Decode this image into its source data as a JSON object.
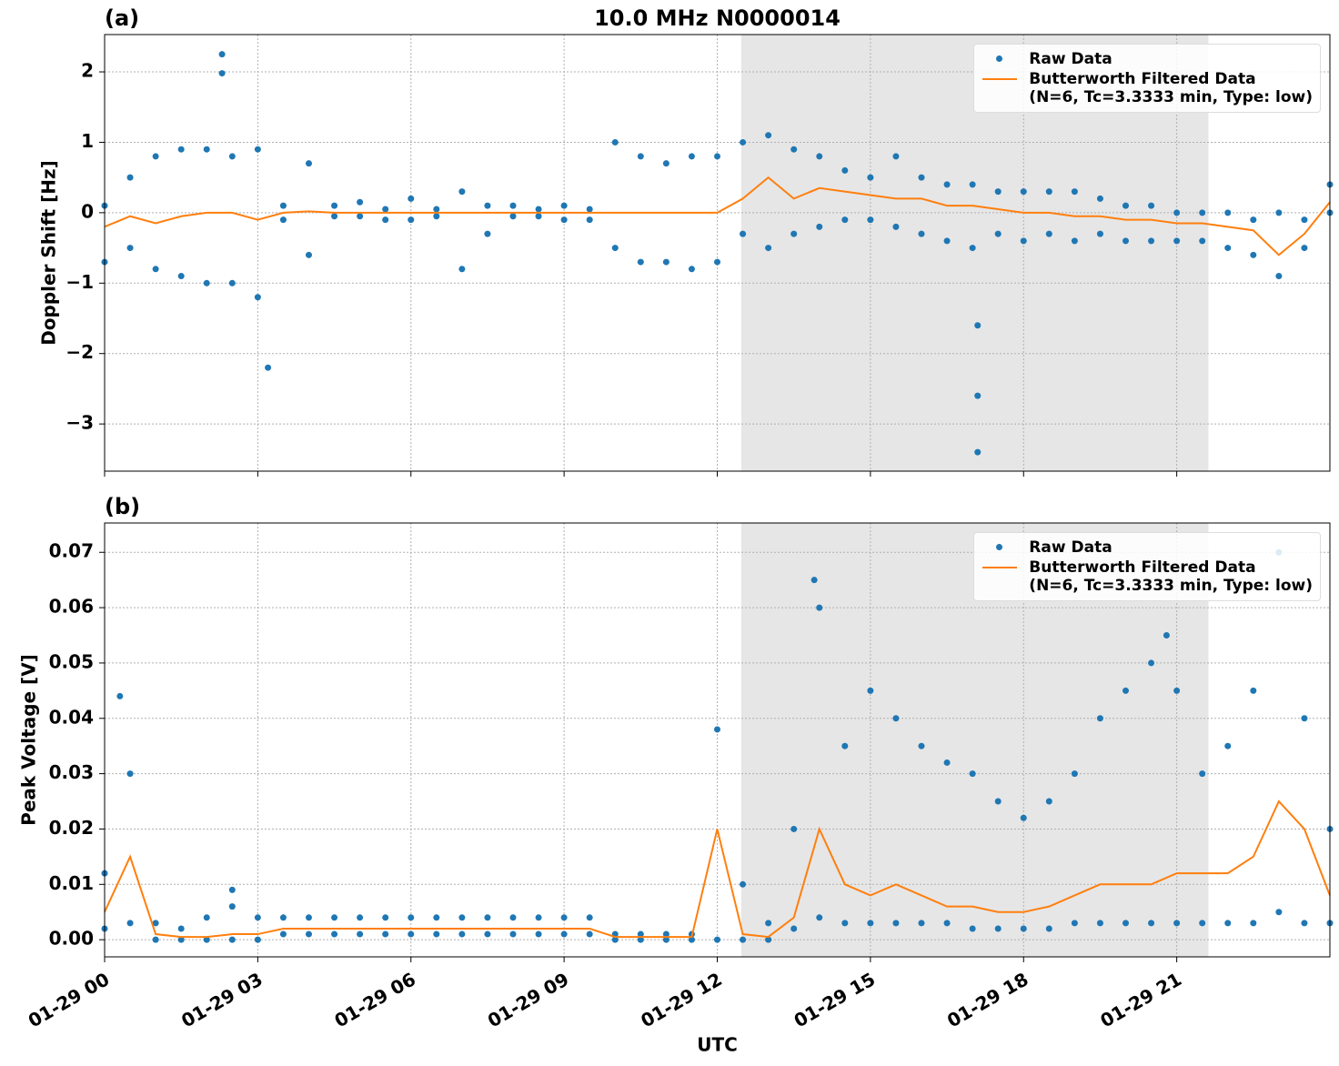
{
  "chart_data": [
    {
      "type": "scatter-line",
      "panel_label": "(a)",
      "title": "10.0 MHz N0000014",
      "y_label": "Doppler Shift [Hz]",
      "xlim": [
        0,
        24
      ],
      "ylim": [
        -3.67,
        2.53
      ],
      "xticks": [
        0,
        3,
        6,
        9,
        12,
        15,
        18,
        21
      ],
      "yticks": [
        {
          "value": -3,
          "label": "−3"
        },
        {
          "value": -2,
          "label": "−2"
        },
        {
          "value": -1,
          "label": "−1"
        },
        0,
        1,
        2
      ],
      "grid": true,
      "shade": [
        12.47,
        21.62
      ],
      "legend": "upper right",
      "series": [
        {
          "name": "Raw Data",
          "color": "#1f77b4",
          "style": "points",
          "x": [
            0,
            0,
            0.5,
            0.5,
            1,
            1,
            1.5,
            1.5,
            2,
            2,
            2.5,
            2.5,
            3,
            3,
            3.5,
            3.5,
            4,
            4,
            4.5,
            4.5,
            5,
            5,
            5.5,
            5.5,
            6,
            6,
            6.5,
            6.5,
            7,
            7,
            7.5,
            7.5,
            8,
            8,
            8.5,
            8.5,
            9,
            9,
            9.5,
            9.5,
            10,
            10,
            10.5,
            10.5,
            11,
            11,
            11.5,
            11.5,
            12,
            12,
            12.5,
            12.5,
            13,
            13,
            13.5,
            13.5,
            14,
            14,
            14.5,
            14.5,
            15,
            15,
            15.5,
            15.5,
            16,
            16,
            16.5,
            16.5,
            17,
            17,
            17.5,
            17.5,
            18,
            18,
            18.5,
            18.5,
            19,
            19,
            19.5,
            19.5,
            20,
            20,
            20.5,
            20.5,
            21,
            21,
            21.5,
            21.5,
            22,
            22,
            22.5,
            22.5,
            23,
            23,
            23.5,
            23.5,
            24,
            24,
            2.3,
            2.3,
            3.2,
            17.1,
            17.1,
            17.1
          ],
          "values": [
            0.1,
            -0.7,
            0.5,
            -0.5,
            0.8,
            -0.8,
            0.9,
            -0.9,
            0.9,
            -1.0,
            0.8,
            -1.0,
            0.9,
            -1.2,
            0.1,
            -0.1,
            0.7,
            -0.6,
            0.1,
            -0.05,
            0.15,
            -0.05,
            0.05,
            -0.1,
            0.2,
            -0.1,
            0.05,
            -0.05,
            0.3,
            -0.8,
            0.1,
            -0.3,
            0.1,
            -0.05,
            0.05,
            -0.05,
            0.1,
            -0.1,
            0.05,
            -0.1,
            1.0,
            -0.5,
            0.8,
            -0.7,
            0.7,
            -0.7,
            0.8,
            -0.8,
            0.8,
            -0.7,
            1.0,
            -0.3,
            1.1,
            -0.5,
            0.9,
            -0.3,
            0.8,
            -0.2,
            0.6,
            -0.1,
            0.5,
            -0.1,
            0.8,
            -0.2,
            0.5,
            -0.3,
            0.4,
            -0.4,
            0.4,
            -0.5,
            0.3,
            -0.3,
            0.3,
            -0.4,
            0.3,
            -0.3,
            0.3,
            -0.4,
            0.2,
            -0.3,
            0.1,
            -0.4,
            0.1,
            -0.4,
            0.0,
            -0.4,
            0.0,
            -0.4,
            0.0,
            -0.5,
            -0.1,
            -0.6,
            0.0,
            -0.9,
            -0.1,
            -0.5,
            0.4,
            0.0,
            2.25,
            1.98,
            -2.2,
            -3.4,
            -2.6,
            -1.6
          ]
        },
        {
          "name": "Butterworth Filtered Data\n(N=6, Tc=3.3333 min, Type: low)",
          "color": "#ff7f0e",
          "style": "line",
          "x": [
            0,
            0.5,
            1,
            1.5,
            2,
            2.5,
            3,
            3.5,
            4,
            4.5,
            5,
            5.5,
            6,
            6.5,
            7,
            7.5,
            8,
            8.5,
            9,
            9.5,
            10,
            10.5,
            11,
            11.5,
            12,
            12.5,
            13,
            13.5,
            14,
            14.5,
            15,
            15.5,
            16,
            16.5,
            17,
            17.5,
            18,
            18.5,
            19,
            19.5,
            20,
            20.5,
            21,
            21.5,
            22,
            22.5,
            23,
            23.5,
            24
          ],
          "values": [
            -0.2,
            -0.05,
            -0.15,
            -0.05,
            0.0,
            0.0,
            -0.1,
            0.0,
            0.02,
            0,
            0,
            0,
            0,
            0,
            0,
            0,
            0,
            0,
            0,
            0,
            0,
            0,
            0,
            0,
            0,
            0.2,
            0.5,
            0.2,
            0.35,
            0.3,
            0.25,
            0.2,
            0.2,
            0.1,
            0.1,
            0.05,
            0.0,
            0.0,
            -0.05,
            -0.05,
            -0.1,
            -0.1,
            -0.15,
            -0.15,
            -0.2,
            -0.25,
            -0.6,
            -0.3,
            0.15
          ]
        }
      ]
    },
    {
      "type": "scatter-line",
      "panel_label": "(b)",
      "y_label": "Peak Voltage [V]",
      "x_label": "UTC",
      "xlim": [
        0,
        24
      ],
      "ylim": [
        -0.0031,
        0.0753
      ],
      "xticks": [
        {
          "value": 0,
          "label": "01-29 00"
        },
        {
          "value": 3,
          "label": "01-29 03"
        },
        {
          "value": 6,
          "label": "01-29 06"
        },
        {
          "value": 9,
          "label": "01-29 09"
        },
        {
          "value": 12,
          "label": "01-29 12"
        },
        {
          "value": 15,
          "label": "01-29 15"
        },
        {
          "value": 18,
          "label": "01-29 18"
        },
        {
          "value": 21,
          "label": "01-29 21"
        }
      ],
      "yticks": [
        {
          "value": 0,
          "label": "0.00"
        },
        {
          "value": 0.01,
          "label": "0.01"
        },
        {
          "value": 0.02,
          "label": "0.02"
        },
        {
          "value": 0.03,
          "label": "0.03"
        },
        {
          "value": 0.04,
          "label": "0.04"
        },
        {
          "value": 0.05,
          "label": "0.05"
        },
        {
          "value": 0.06,
          "label": "0.06"
        },
        {
          "value": 0.07,
          "label": "0.07"
        }
      ],
      "grid": true,
      "shade": [
        12.47,
        21.62
      ],
      "legend": "upper right",
      "series": [
        {
          "name": "Raw Data",
          "color": "#1f77b4",
          "style": "points",
          "x": [
            0,
            0,
            0.5,
            0.5,
            1,
            1,
            1.5,
            1.5,
            2,
            2,
            2.5,
            2.5,
            3,
            3,
            3.5,
            3.5,
            4,
            4,
            4.5,
            4.5,
            5,
            5,
            5.5,
            5.5,
            6,
            6,
            6.5,
            6.5,
            7,
            7,
            7.5,
            7.5,
            8,
            8,
            8.5,
            8.5,
            9,
            9,
            9.5,
            9.5,
            10,
            10,
            10.5,
            10.5,
            11,
            11,
            11.5,
            11.5,
            12,
            12,
            12.5,
            12.5,
            13,
            13,
            13.5,
            13.5,
            14,
            14,
            14.5,
            14.5,
            15,
            15,
            15.5,
            15.5,
            16,
            16,
            16.5,
            16.5,
            17,
            17,
            17.5,
            17.5,
            18,
            18,
            18.5,
            18.5,
            19,
            19,
            19.5,
            19.5,
            20,
            20,
            20.5,
            20.5,
            21,
            21,
            21.5,
            21.5,
            22,
            22,
            22.5,
            22.5,
            23,
            23,
            23.5,
            23.5,
            24,
            24,
            0.3,
            2.5,
            13.9,
            20.8
          ],
          "values": [
            0.012,
            0.002,
            0.03,
            0.003,
            0.003,
            0.0,
            0.002,
            0.0,
            0.004,
            0.0,
            0.006,
            0.0,
            0.004,
            0.0,
            0.004,
            0.001,
            0.004,
            0.001,
            0.004,
            0.001,
            0.004,
            0.001,
            0.004,
            0.001,
            0.004,
            0.001,
            0.004,
            0.001,
            0.004,
            0.001,
            0.004,
            0.001,
            0.004,
            0.001,
            0.004,
            0.001,
            0.004,
            0.001,
            0.004,
            0.001,
            0.001,
            0.0,
            0.001,
            0.0,
            0.001,
            0.0,
            0.001,
            0.0,
            0.038,
            0.0,
            0.01,
            0.0,
            0.003,
            0.0,
            0.02,
            0.002,
            0.06,
            0.004,
            0.035,
            0.003,
            0.045,
            0.003,
            0.04,
            0.003,
            0.035,
            0.003,
            0.032,
            0.003,
            0.03,
            0.002,
            0.025,
            0.002,
            0.022,
            0.002,
            0.025,
            0.002,
            0.03,
            0.003,
            0.04,
            0.003,
            0.045,
            0.003,
            0.05,
            0.003,
            0.045,
            0.003,
            0.03,
            0.003,
            0.035,
            0.003,
            0.045,
            0.003,
            0.07,
            0.005,
            0.04,
            0.003,
            0.02,
            0.003,
            0.044,
            0.009,
            0.065,
            0.055
          ]
        },
        {
          "name": "Butterworth Filtered Data\n(N=6, Tc=3.3333 min, Type: low)",
          "color": "#ff7f0e",
          "style": "line",
          "x": [
            0,
            0.5,
            1,
            1.5,
            2,
            2.5,
            3,
            3.5,
            4,
            4.5,
            5,
            5.5,
            6,
            6.5,
            7,
            7.5,
            8,
            8.5,
            9,
            9.5,
            10,
            10.5,
            11,
            11.5,
            12,
            12.5,
            13,
            13.5,
            14,
            14.5,
            15,
            15.5,
            16,
            16.5,
            17,
            17.5,
            18,
            18.5,
            19,
            19.5,
            20,
            20.5,
            21,
            21.5,
            22,
            22.5,
            23,
            23.5,
            24
          ],
          "values": [
            0.005,
            0.015,
            0.001,
            0.0005,
            0.0005,
            0.001,
            0.001,
            0.002,
            0.002,
            0.002,
            0.002,
            0.002,
            0.002,
            0.002,
            0.002,
            0.002,
            0.002,
            0.002,
            0.002,
            0.002,
            0.0005,
            0.0005,
            0.0005,
            0.0005,
            0.02,
            0.001,
            0.0005,
            0.004,
            0.02,
            0.01,
            0.008,
            0.01,
            0.008,
            0.006,
            0.006,
            0.005,
            0.005,
            0.006,
            0.008,
            0.01,
            0.01,
            0.01,
            0.012,
            0.012,
            0.012,
            0.015,
            0.025,
            0.02,
            0.008
          ]
        }
      ]
    }
  ]
}
